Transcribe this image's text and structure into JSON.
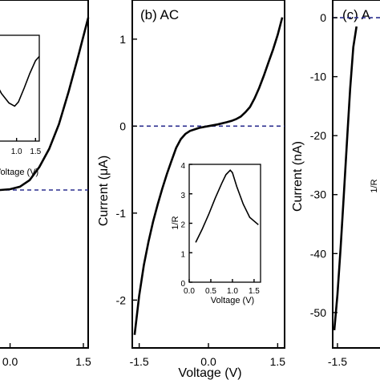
{
  "chart_data": [
    {
      "type": "line",
      "panel_label": "",
      "xlabel": "",
      "ylabel": "",
      "x_ticks": [
        "0.0",
        "1.5"
      ],
      "y_ticks": [],
      "xlim": [
        -1.6,
        1.6
      ],
      "series": [
        {
          "x": [
            -1.6,
            -0.2,
            0.0,
            0.2,
            0.4,
            0.6,
            0.8,
            1.0,
            1.2,
            1.4,
            1.6
          ],
          "y": [
            0.0,
            0.0,
            0.005,
            0.02,
            0.06,
            0.14,
            0.25,
            0.4,
            0.6,
            0.82,
            1.05
          ]
        }
      ],
      "baseline_y": 0,
      "inset": {
        "xlabel": "Voltage (V)",
        "x_ticks": [
          "1.0",
          "1.5"
        ],
        "series": [
          {
            "x": [
              0.35,
              0.6,
              0.8,
              0.95,
              1.05,
              1.2,
              1.35,
              1.5,
              1.6
            ],
            "y": [
              0.62,
              0.45,
              0.36,
              0.33,
              0.37,
              0.5,
              0.64,
              0.76,
              0.8
            ]
          }
        ]
      }
    },
    {
      "type": "line",
      "panel_label": "(b) AC",
      "xlabel": "Voltage (V)",
      "ylabel": "Current (μA)",
      "x_ticks": [
        "-1.5",
        "0.0",
        "1.5"
      ],
      "y_ticks": [
        "1",
        "0",
        "-1",
        "-2"
      ],
      "xlim": [
        -1.65,
        1.65
      ],
      "ylim": [
        -2.55,
        1.45
      ],
      "series": [
        {
          "x": [
            -1.6,
            -1.5,
            -1.4,
            -1.3,
            -1.2,
            -1.1,
            -1.0,
            -0.9,
            -0.8,
            -0.7,
            -0.6,
            -0.5,
            -0.4,
            -0.2,
            0.0,
            0.2,
            0.4,
            0.5,
            0.6,
            0.7,
            0.8,
            0.9,
            1.0,
            1.1,
            1.2,
            1.3,
            1.4,
            1.5,
            1.6
          ],
          "y": [
            -2.4,
            -1.95,
            -1.6,
            -1.33,
            -1.1,
            -0.9,
            -0.72,
            -0.55,
            -0.4,
            -0.25,
            -0.15,
            -0.09,
            -0.055,
            -0.02,
            0.0,
            0.02,
            0.045,
            0.06,
            0.08,
            0.11,
            0.16,
            0.22,
            0.32,
            0.44,
            0.58,
            0.73,
            0.88,
            1.05,
            1.25
          ]
        }
      ],
      "baseline_y": 0,
      "inset": {
        "xlabel": "Voltage (V)",
        "ylabel": "1/R",
        "x_ticks": [
          "0.0",
          "0.5",
          "1.0",
          "1.5"
        ],
        "y_ticks": [
          "0",
          "1",
          "2",
          "3",
          "4"
        ],
        "xlim": [
          0,
          1.65
        ],
        "ylim": [
          0,
          4
        ],
        "series": [
          {
            "x": [
              0.15,
              0.3,
              0.45,
              0.6,
              0.75,
              0.85,
              0.95,
              1.0,
              1.1,
              1.25,
              1.4,
              1.6
            ],
            "y": [
              1.35,
              1.8,
              2.3,
              2.85,
              3.35,
              3.65,
              3.8,
              3.72,
              3.25,
              2.65,
              2.2,
              1.95
            ]
          }
        ]
      }
    },
    {
      "type": "line",
      "panel_label": "(c) A",
      "xlabel": "",
      "ylabel": "Current (nA)",
      "x_ticks": [
        "-1.5"
      ],
      "y_ticks": [
        "0",
        "-10",
        "-20",
        "-30",
        "-40",
        "-50"
      ],
      "xlim": [
        -1.65,
        0.75
      ],
      "ylim": [
        -56,
        3
      ],
      "series": [
        {
          "x": [
            -1.6,
            -1.5,
            -1.4,
            -1.3,
            -1.2,
            -1.1,
            -1.0,
            -0.9
          ],
          "y": [
            -53,
            -47,
            -39,
            -30,
            -21,
            -12,
            -5,
            -1.5
          ]
        }
      ],
      "baseline_y": 0,
      "inset": {
        "ylabel": "1/R"
      }
    }
  ]
}
